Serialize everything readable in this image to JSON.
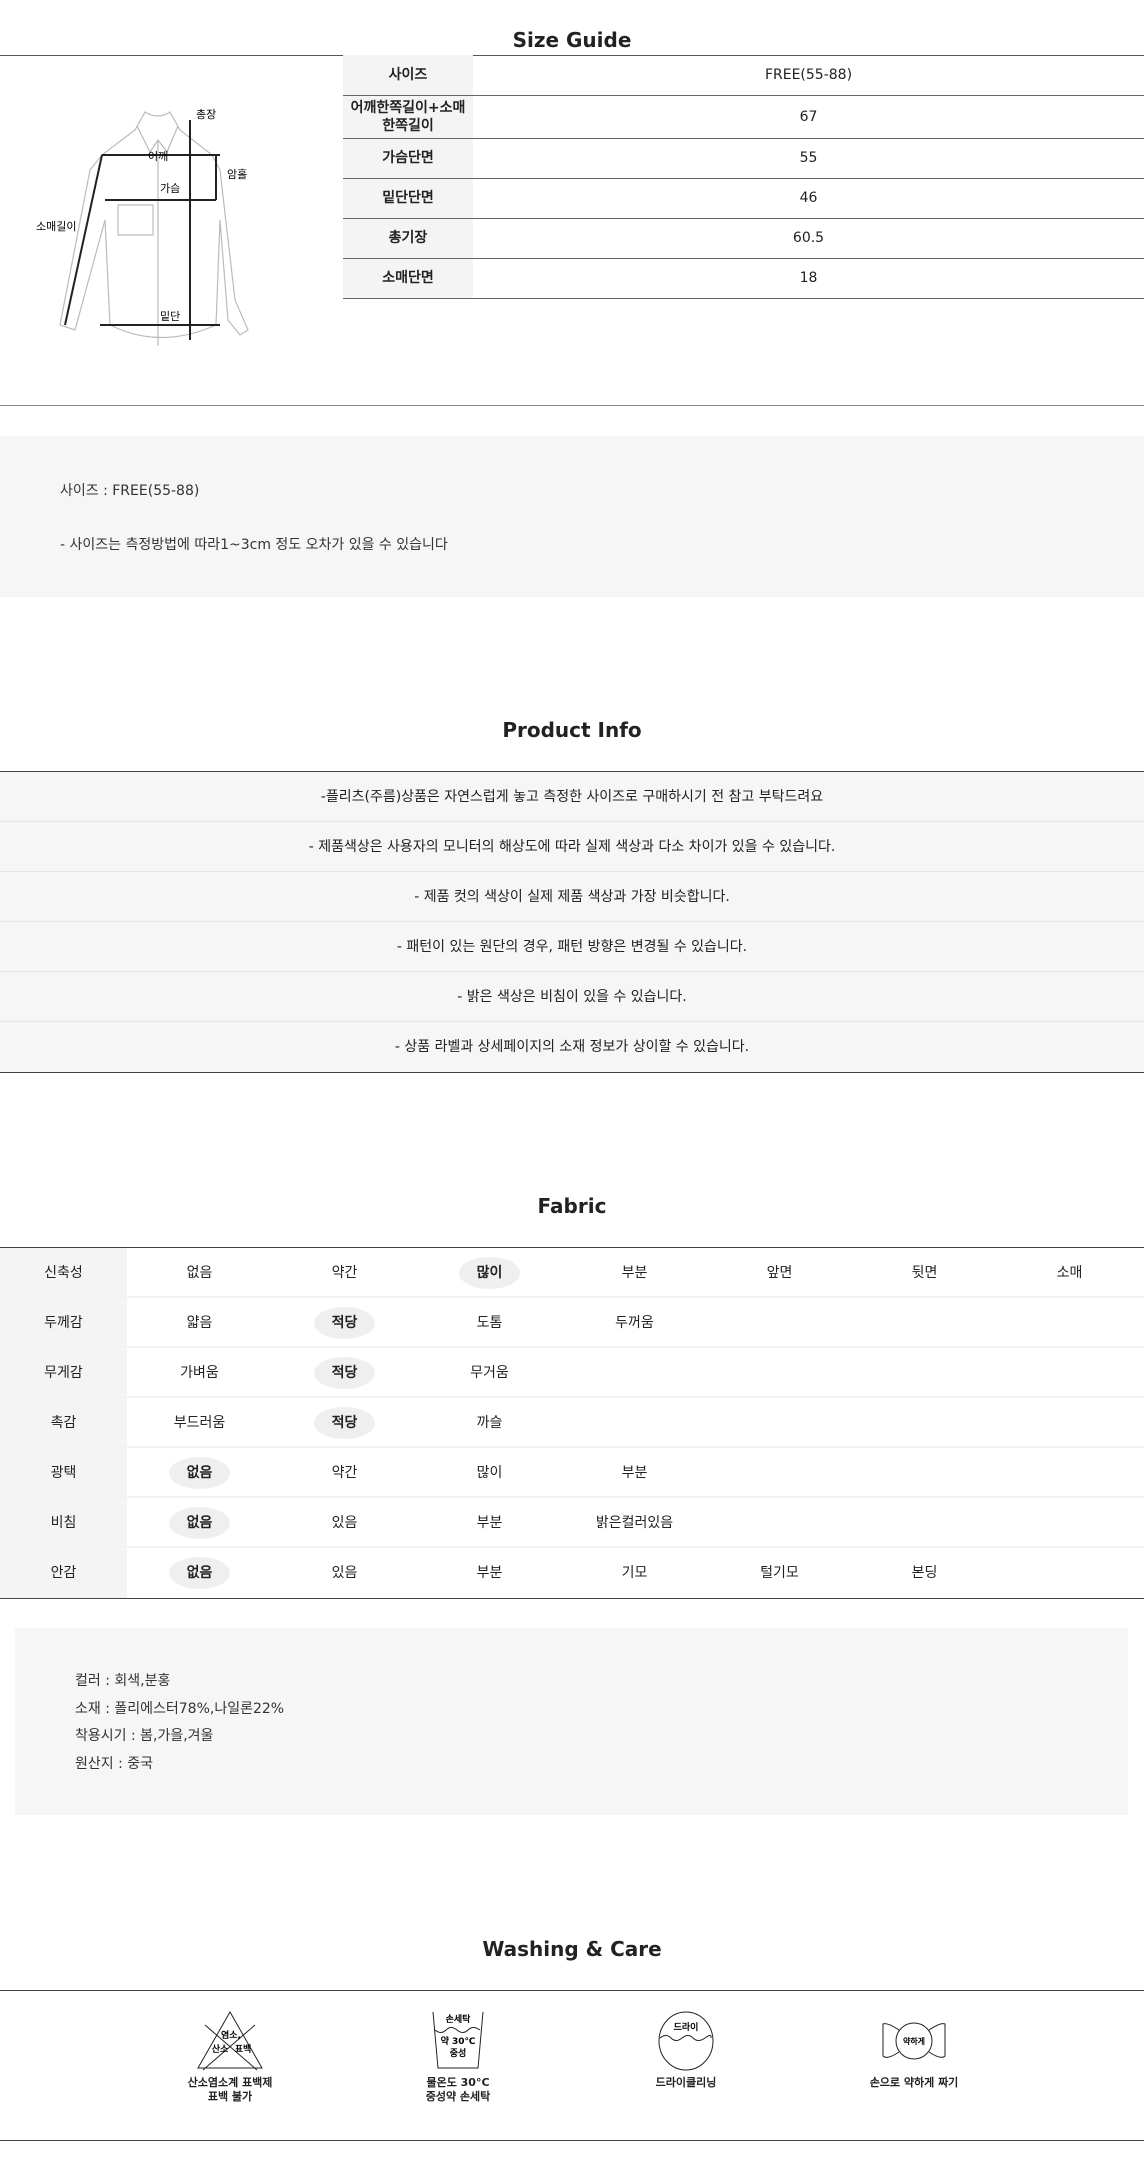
{
  "size_guide": {
    "title": "Size Guide",
    "diagram_labels": {
      "length": "총장",
      "shoulder": "어깨",
      "chest": "가슴",
      "armhole": "암홀",
      "sleeve": "소매길이",
      "hem": "밑단"
    },
    "rows": [
      {
        "label": "사이즈",
        "value": "FREE(55-88)"
      },
      {
        "label": "어깨한쪽길이+소매한쪽길이",
        "value": "67"
      },
      {
        "label": "가슴단면",
        "value": "55"
      },
      {
        "label": "밑단단면",
        "value": "46"
      },
      {
        "label": "총기장",
        "value": "60.5"
      },
      {
        "label": "소매단면",
        "value": "18"
      }
    ],
    "notes": [
      "사이즈 : FREE(55-88)",
      "- 사이즈는 측정방법에 따라1~3cm 정도 오차가 있을 수 있습니다"
    ]
  },
  "product_info": {
    "title": "Product Info",
    "rows": [
      "-플리츠(주름)상품은 자연스럽게 놓고 측정한 사이즈로 구매하시기 전 참고 부탁드려요",
      "- 제품색상은 사용자의 모니터의 해상도에 따라 실제 색상과 다소 차이가 있을 수 있습니다.",
      "- 제품 컷의 색상이 실제 제품 색상과 가장 비슷합니다.",
      "- 패턴이 있는 원단의 경우, 패턴 방향은 변경될 수 있습니다.",
      "- 밝은 색상은 비침이 있을 수 있습니다.",
      "- 상품 라벨과 상세페이지의 소재 정보가 상이할 수 있습니다."
    ]
  },
  "fabric": {
    "title": "Fabric",
    "rows": [
      {
        "label": "신축성",
        "options": [
          "없음",
          "약간",
          "많이",
          "부분",
          "앞면",
          "뒷면",
          "소매"
        ],
        "selected": 2
      },
      {
        "label": "두께감",
        "options": [
          "얇음",
          "적당",
          "도톰",
          "두꺼움"
        ],
        "selected": 1
      },
      {
        "label": "무게감",
        "options": [
          "가벼움",
          "적당",
          "무거움"
        ],
        "selected": 1
      },
      {
        "label": "촉감",
        "options": [
          "부드러움",
          "적당",
          "까슬"
        ],
        "selected": 1
      },
      {
        "label": "광택",
        "options": [
          "없음",
          "약간",
          "많이",
          "부분"
        ],
        "selected": 0
      },
      {
        "label": "비침",
        "options": [
          "없음",
          "있음",
          "부분",
          "밝은컬러있음"
        ],
        "selected": 0
      },
      {
        "label": "안감",
        "options": [
          "없음",
          "있음",
          "부분",
          "기모",
          "털기모",
          "본딩"
        ],
        "selected": 0
      }
    ],
    "specs": [
      "컬러 : 회색,분홍",
      "소재 : 폴리에스터78%,나일론22%",
      "착용시기 : 봄,가을,겨울",
      "원산지 : 중국"
    ]
  },
  "washing": {
    "title": "Washing & Care",
    "items": [
      {
        "icon": "no-bleach-icon",
        "icon_text": [
          "염소,",
          "산소",
          "표백"
        ],
        "label": [
          "산소염소계 표백제",
          "표백 불가"
        ]
      },
      {
        "icon": "hand-wash-icon",
        "icon_text": [
          "손세탁",
          "약 30℃",
          "중성"
        ],
        "label": [
          "물온도 30°C",
          "중성약 손세탁"
        ]
      },
      {
        "icon": "dry-clean-icon",
        "icon_text": [
          "드라이"
        ],
        "label": [
          "드라이클리닝"
        ]
      },
      {
        "icon": "gentle-wring-icon",
        "icon_text": [
          "약하게"
        ],
        "label": [
          "손으로 약하게 짜기"
        ]
      }
    ]
  }
}
